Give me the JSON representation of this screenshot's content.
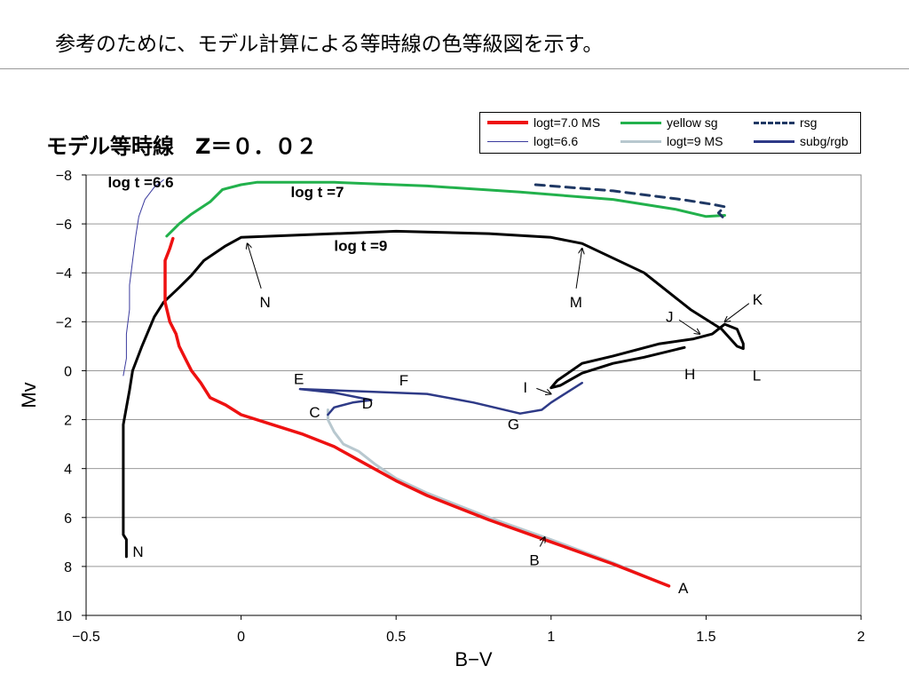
{
  "slide_title": "参考のために、モデル計算による等時線の色等級図を示す。",
  "chart_data": {
    "type": "line",
    "title": "モデル等時線　Z＝０．０２",
    "xlabel": "B−V",
    "ylabel": "Mv",
    "xlim": [
      -0.5,
      2
    ],
    "ylim": [
      10,
      -8
    ],
    "x_ticks": [
      "−0.5",
      "0",
      "0.5",
      "1",
      "1.5",
      "2"
    ],
    "x_tick_values": [
      -0.5,
      0,
      0.5,
      1,
      1.5,
      2
    ],
    "y_ticks": [
      "−8",
      "−6",
      "−4",
      "−2",
      "0",
      "2",
      "4",
      "6",
      "8",
      "10"
    ],
    "y_tick_values": [
      -8,
      -6,
      -4,
      -2,
      0,
      2,
      4,
      6,
      8,
      10
    ],
    "grid": "horizontal",
    "legend_position": "top-right",
    "series": [
      {
        "name": "logt=7.0 MS",
        "color": "#ee1111",
        "width": 3.5,
        "dash": "",
        "points": [
          [
            1.38,
            8.8
          ],
          [
            1.2,
            7.9
          ],
          [
            1.0,
            7.0
          ],
          [
            0.8,
            6.1
          ],
          [
            0.6,
            5.1
          ],
          [
            0.5,
            4.5
          ],
          [
            0.4,
            3.8
          ],
          [
            0.3,
            3.1
          ],
          [
            0.2,
            2.6
          ],
          [
            0.1,
            2.2
          ],
          [
            0.0,
            1.8
          ],
          [
            -0.05,
            1.4
          ],
          [
            -0.1,
            1.1
          ],
          [
            -0.13,
            0.5
          ],
          [
            -0.16,
            0.0
          ],
          [
            -0.18,
            -0.5
          ],
          [
            -0.2,
            -1.0
          ],
          [
            -0.21,
            -1.5
          ],
          [
            -0.23,
            -2.0
          ],
          [
            -0.245,
            -2.8
          ],
          [
            -0.245,
            -4.5
          ],
          [
            -0.23,
            -5.0
          ],
          [
            -0.22,
            -5.4
          ]
        ]
      },
      {
        "name": "logt=6.6",
        "color": "#3b3b9e",
        "width": 1,
        "dash": "",
        "points": [
          [
            -0.38,
            0.2
          ],
          [
            -0.37,
            -0.5
          ],
          [
            -0.37,
            -1.5
          ],
          [
            -0.36,
            -2.5
          ],
          [
            -0.36,
            -3.5
          ],
          [
            -0.35,
            -4.5
          ],
          [
            -0.34,
            -5.5
          ],
          [
            -0.33,
            -6.3
          ],
          [
            -0.31,
            -7.0
          ],
          [
            -0.28,
            -7.5
          ],
          [
            -0.25,
            -7.8
          ]
        ]
      },
      {
        "name": "yellow sg",
        "color": "#22b14c",
        "width": 3,
        "dash": "",
        "points": [
          [
            -0.24,
            -5.5
          ],
          [
            -0.2,
            -6.0
          ],
          [
            -0.16,
            -6.4
          ],
          [
            -0.1,
            -6.9
          ],
          [
            -0.06,
            -7.4
          ],
          [
            0.0,
            -7.6
          ],
          [
            0.05,
            -7.7
          ],
          [
            0.3,
            -7.7
          ],
          [
            0.6,
            -7.55
          ],
          [
            0.9,
            -7.3
          ],
          [
            1.2,
            -7.0
          ],
          [
            1.4,
            -6.6
          ],
          [
            1.5,
            -6.3
          ],
          [
            1.56,
            -6.35
          ]
        ]
      },
      {
        "name": "logt=9 MS",
        "color": "#b8c8cf",
        "width": 3,
        "dash": "",
        "points": [
          [
            1.37,
            8.75
          ],
          [
            1.2,
            7.85
          ],
          [
            1.0,
            6.9
          ],
          [
            0.8,
            6.0
          ],
          [
            0.6,
            5.0
          ],
          [
            0.5,
            4.4
          ],
          [
            0.43,
            3.8
          ],
          [
            0.38,
            3.3
          ],
          [
            0.33,
            3.0
          ],
          [
            0.3,
            2.5
          ],
          [
            0.28,
            2.0
          ],
          [
            0.28,
            1.6
          ]
        ]
      },
      {
        "name": "rsg",
        "color": "#1f3864",
        "width": 3,
        "dash": "10 7",
        "points": [
          [
            0.95,
            -7.6
          ],
          [
            1.2,
            -7.35
          ],
          [
            1.42,
            -7.0
          ],
          [
            1.52,
            -6.8
          ],
          [
            1.56,
            -6.7
          ],
          [
            1.54,
            -6.45
          ],
          [
            1.56,
            -6.2
          ]
        ]
      },
      {
        "name": "subg/rgb",
        "color": "#2e3a87",
        "width": 2.5,
        "dash": "",
        "points": [
          [
            0.28,
            1.8
          ],
          [
            0.3,
            1.5
          ],
          [
            0.36,
            1.3
          ],
          [
            0.42,
            1.2
          ],
          [
            0.3,
            0.9
          ],
          [
            0.19,
            0.75
          ],
          [
            0.4,
            0.85
          ],
          [
            0.6,
            0.95
          ],
          [
            0.75,
            1.3
          ],
          [
            0.9,
            1.75
          ],
          [
            0.97,
            1.6
          ],
          [
            1.0,
            1.3
          ],
          [
            1.05,
            0.9
          ],
          [
            1.1,
            0.5
          ]
        ]
      },
      {
        "name": "",
        "color": "#000000",
        "width": 3,
        "dash": "",
        "points": [
          [
            -0.37,
            7.6
          ],
          [
            -0.37,
            6.9
          ],
          [
            -0.38,
            6.7
          ],
          [
            -0.38,
            2.2
          ],
          [
            -0.37,
            1.5
          ],
          [
            -0.36,
            0.8
          ],
          [
            -0.35,
            0.0
          ],
          [
            -0.32,
            -1.0
          ],
          [
            -0.28,
            -2.2
          ],
          [
            -0.25,
            -2.8
          ],
          [
            -0.2,
            -3.4
          ],
          [
            -0.16,
            -3.9
          ],
          [
            -0.12,
            -4.5
          ],
          [
            -0.05,
            -5.1
          ],
          [
            0.0,
            -5.45
          ],
          [
            0.2,
            -5.55
          ],
          [
            0.5,
            -5.7
          ],
          [
            0.8,
            -5.6
          ],
          [
            1.0,
            -5.45
          ],
          [
            1.1,
            -5.2
          ],
          [
            1.3,
            -4.0
          ],
          [
            1.45,
            -2.5
          ],
          [
            1.55,
            -1.7
          ],
          [
            1.6,
            -1.0
          ],
          [
            1.62,
            -0.9
          ],
          [
            1.62,
            -1.1
          ],
          [
            1.6,
            -1.7
          ],
          [
            1.56,
            -1.9
          ],
          [
            1.52,
            -1.5
          ],
          [
            1.46,
            -1.3
          ],
          [
            1.35,
            -1.1
          ],
          [
            1.2,
            -0.6
          ],
          [
            1.1,
            -0.3
          ],
          [
            1.02,
            0.4
          ],
          [
            1.0,
            0.7
          ],
          [
            1.03,
            0.6
          ],
          [
            1.1,
            0.1
          ],
          [
            1.2,
            -0.3
          ],
          [
            1.3,
            -0.55
          ],
          [
            1.43,
            -0.95
          ]
        ]
      }
    ],
    "annotations": [
      {
        "text": "log t =6.6",
        "x": -0.43,
        "y": -7.5,
        "bold": true
      },
      {
        "text": "log t =7",
        "x": 0.16,
        "y": -7.1,
        "bold": true
      },
      {
        "text": "log t =9",
        "x": 0.3,
        "y": -4.9,
        "bold": true
      },
      {
        "text": "N",
        "x": 0.06,
        "y": -2.6,
        "arrow_to": [
          0.02,
          -5.2
        ]
      },
      {
        "text": "M",
        "x": 1.06,
        "y": -2.6,
        "arrow_to": [
          1.1,
          -5.0
        ]
      },
      {
        "text": "K",
        "x": 1.65,
        "y": -2.7,
        "arrow_to": [
          1.56,
          -2.0
        ]
      },
      {
        "text": "J",
        "x": 1.37,
        "y": -2.0,
        "arrow_to": [
          1.48,
          -1.5
        ]
      },
      {
        "text": "L",
        "x": 1.65,
        "y": 0.4
      },
      {
        "text": "H",
        "x": 1.43,
        "y": 0.35
      },
      {
        "text": "I",
        "x": 0.91,
        "y": 0.9,
        "arrow_to": [
          1.0,
          0.95
        ]
      },
      {
        "text": "E",
        "x": 0.17,
        "y": 0.55
      },
      {
        "text": "F",
        "x": 0.51,
        "y": 0.6
      },
      {
        "text": "D",
        "x": 0.39,
        "y": 1.55
      },
      {
        "text": "C",
        "x": 0.22,
        "y": 1.9
      },
      {
        "text": "G",
        "x": 0.86,
        "y": 2.4
      },
      {
        "text": "B",
        "x": 0.93,
        "y": 7.95,
        "arrow_to": [
          0.98,
          6.8
        ]
      },
      {
        "text": "A",
        "x": 1.41,
        "y": 9.1
      },
      {
        "text": "N",
        "x": -0.35,
        "y": 7.6
      }
    ]
  },
  "legend": {
    "items": [
      {
        "label": "logt=7.0 MS",
        "color": "#ee1111",
        "style": "solid-thick"
      },
      {
        "label": "yellow sg",
        "color": "#22b14c",
        "style": "solid"
      },
      {
        "label": "rsg",
        "color": "#1f3864",
        "style": "dashed"
      },
      {
        "label": "logt=6.6",
        "color": "#3b3b9e",
        "style": "thin"
      },
      {
        "label": "logt=9 MS",
        "color": "#b8c8cf",
        "style": "solid"
      },
      {
        "label": "subg/rgb",
        "color": "#2e3a87",
        "style": "solid"
      }
    ]
  }
}
